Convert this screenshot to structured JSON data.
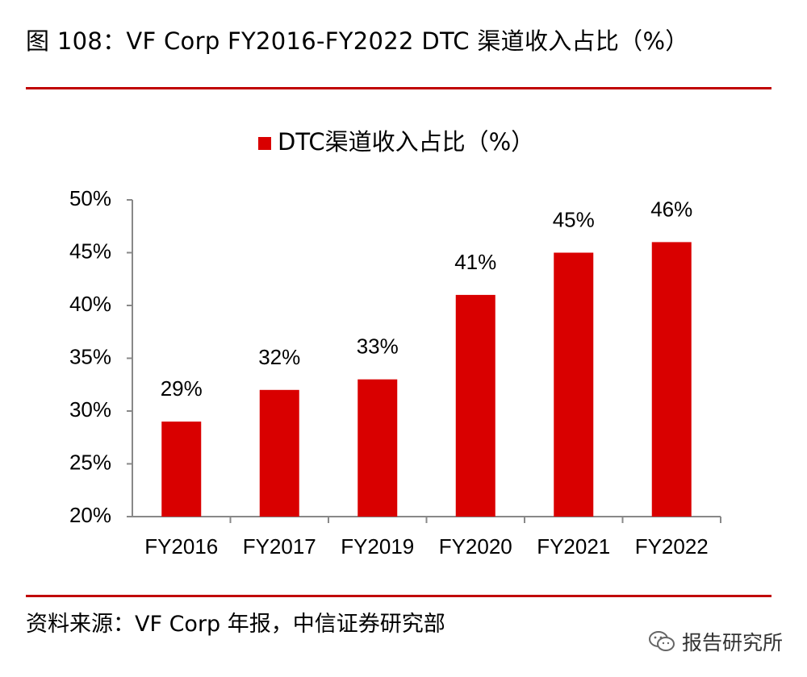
{
  "figure": {
    "title": "图 108：VF Corp FY2016-FY2022 DTC 渠道收入占比（%）",
    "source": "资料来源：VF Corp 年报，中信证券研究部",
    "watermark": "报告研究所",
    "watermark_icon": "wechat-icon"
  },
  "colors": {
    "accent": "#c00000",
    "bar": "#d90000",
    "axis": "#888888",
    "text": "#000000"
  },
  "chart_data": {
    "type": "bar",
    "title": "",
    "categories": [
      "FY2016",
      "FY2017",
      "FY2019",
      "FY2020",
      "FY2021",
      "FY2022"
    ],
    "series": [
      {
        "name": "DTC渠道收入占比（%）",
        "values": [
          29,
          32,
          33,
          41,
          45,
          46
        ],
        "labels": [
          "29%",
          "32%",
          "33%",
          "41%",
          "45%",
          "46%"
        ]
      }
    ],
    "ylim": [
      20,
      50
    ],
    "yticks": [
      "20%",
      "25%",
      "30%",
      "35%",
      "40%",
      "45%",
      "50%"
    ],
    "xlabel": "",
    "ylabel": "",
    "grid": false,
    "legend": "top-center"
  }
}
